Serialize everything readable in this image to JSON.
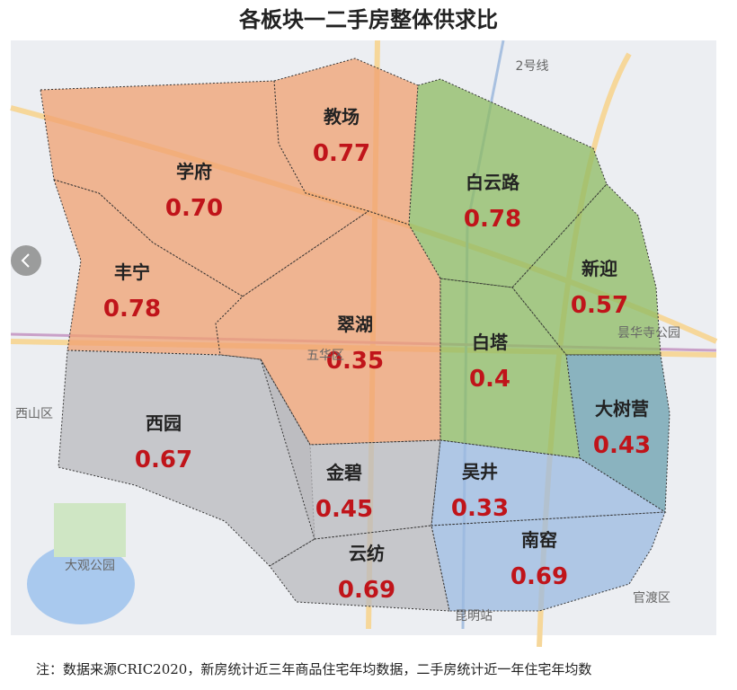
{
  "header": {
    "title": "各板块一二手房整体供求比"
  },
  "regions": [
    {
      "name": "教场",
      "value": "0.77",
      "color": "#f0a070"
    },
    {
      "name": "学府",
      "value": "0.70",
      "color": "#f0a070"
    },
    {
      "name": "丰宁",
      "value": "0.78",
      "color": "#f0a070"
    },
    {
      "name": "翠湖",
      "value": "0.35",
      "color": "#f0a070"
    },
    {
      "name": "白云路",
      "value": "0.78",
      "color": "#8dbb62"
    },
    {
      "name": "新迎",
      "value": "0.57",
      "color": "#8dbb62"
    },
    {
      "name": "白塔",
      "value": "0.4",
      "color": "#8dbb62"
    },
    {
      "name": "大树营",
      "value": "0.43",
      "color": "#6a9fae"
    },
    {
      "name": "西园",
      "value": "0.67",
      "color": "#b9b9be"
    },
    {
      "name": "金碧",
      "value": "0.45",
      "color": "#b9b9be"
    },
    {
      "name": "吴井",
      "value": "0.33",
      "color": "#9bb9e0"
    },
    {
      "name": "南窑",
      "value": "0.69",
      "color": "#9bb9e0"
    },
    {
      "name": "云纺",
      "value": "0.69",
      "color": "#b9b9be"
    }
  ],
  "map_labels": [
    "五华区",
    "西山区",
    "官渡区",
    "大观公园",
    "昙华寺公园",
    "2号线",
    "昆明站"
  ],
  "note": "注：数据来源CRIC2020，新房统计近三年商品住宅年均数据，二手房统计近一年住宅年均数"
}
